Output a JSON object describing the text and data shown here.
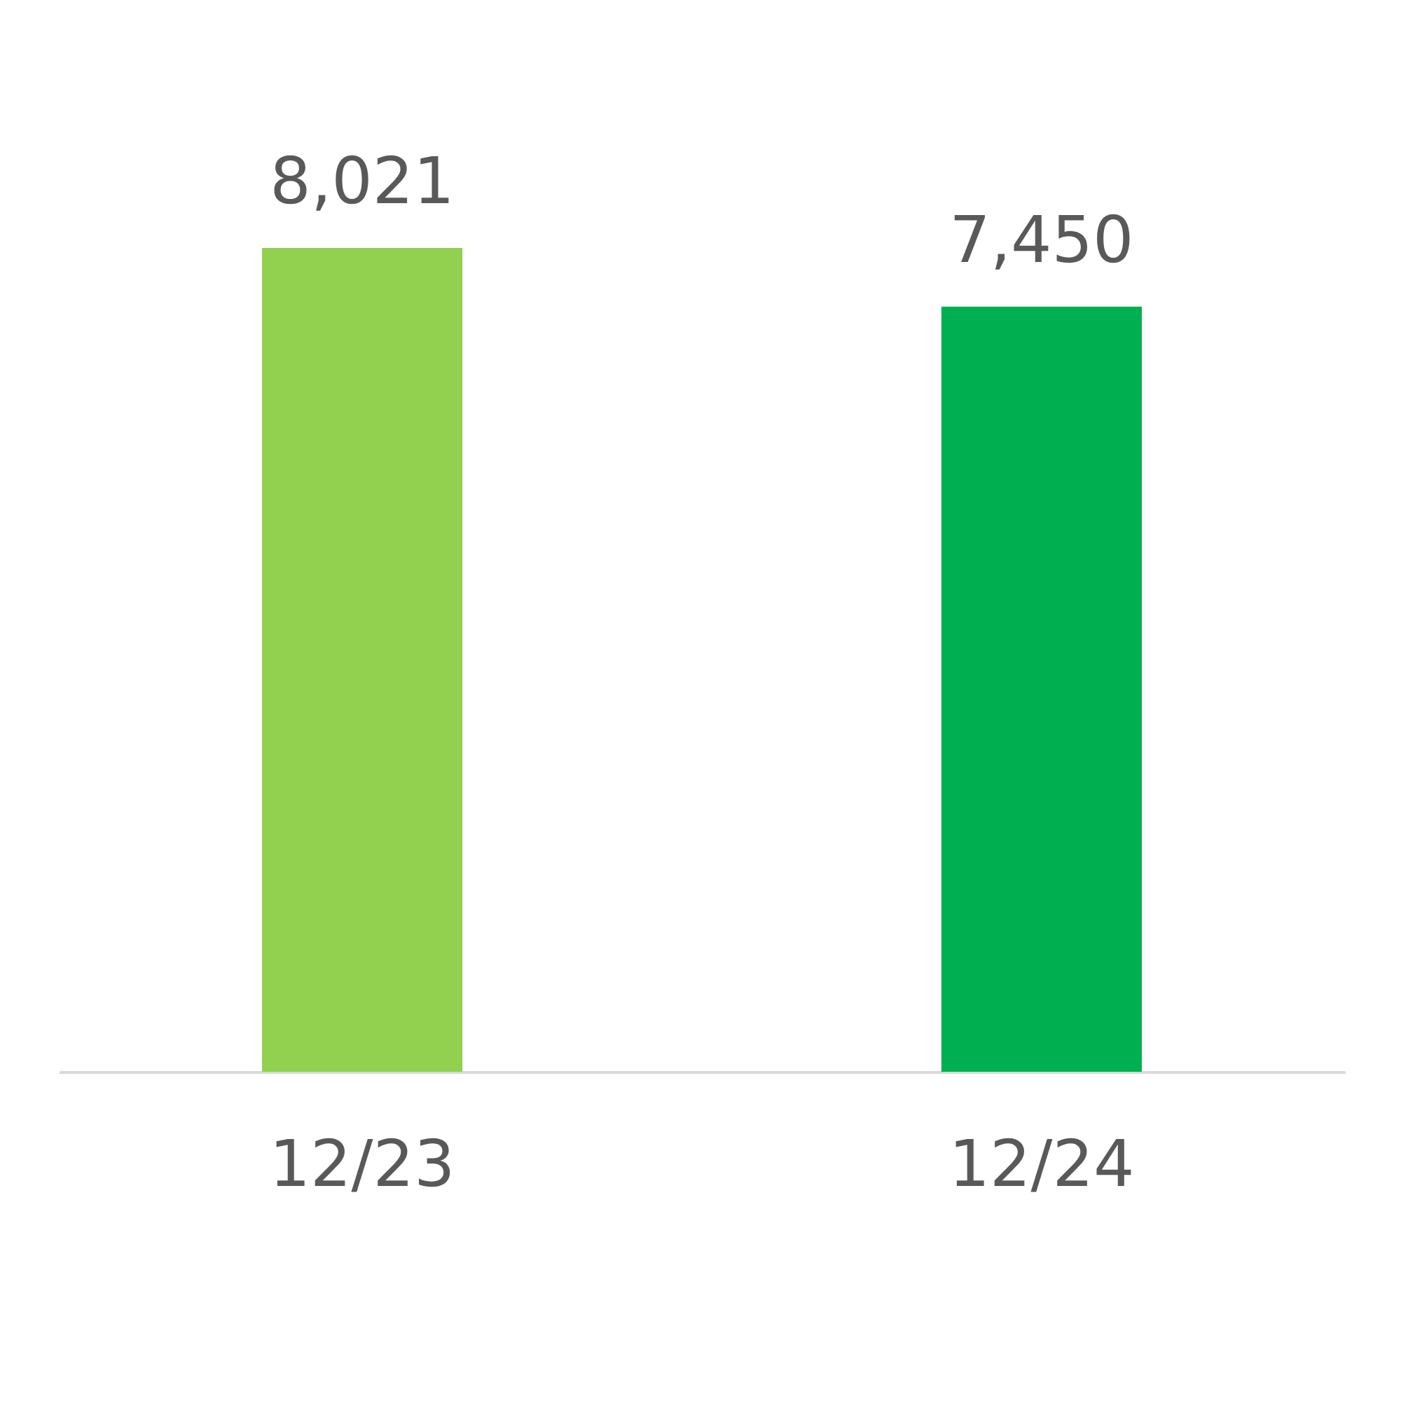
{
  "chart_data": {
    "type": "bar",
    "categories": [
      "12/23",
      "12/24"
    ],
    "values": [
      8021,
      7450
    ],
    "colors": [
      "#92d050",
      "#00b050"
    ],
    "value_labels": [
      "8,021",
      "7,450"
    ]
  }
}
